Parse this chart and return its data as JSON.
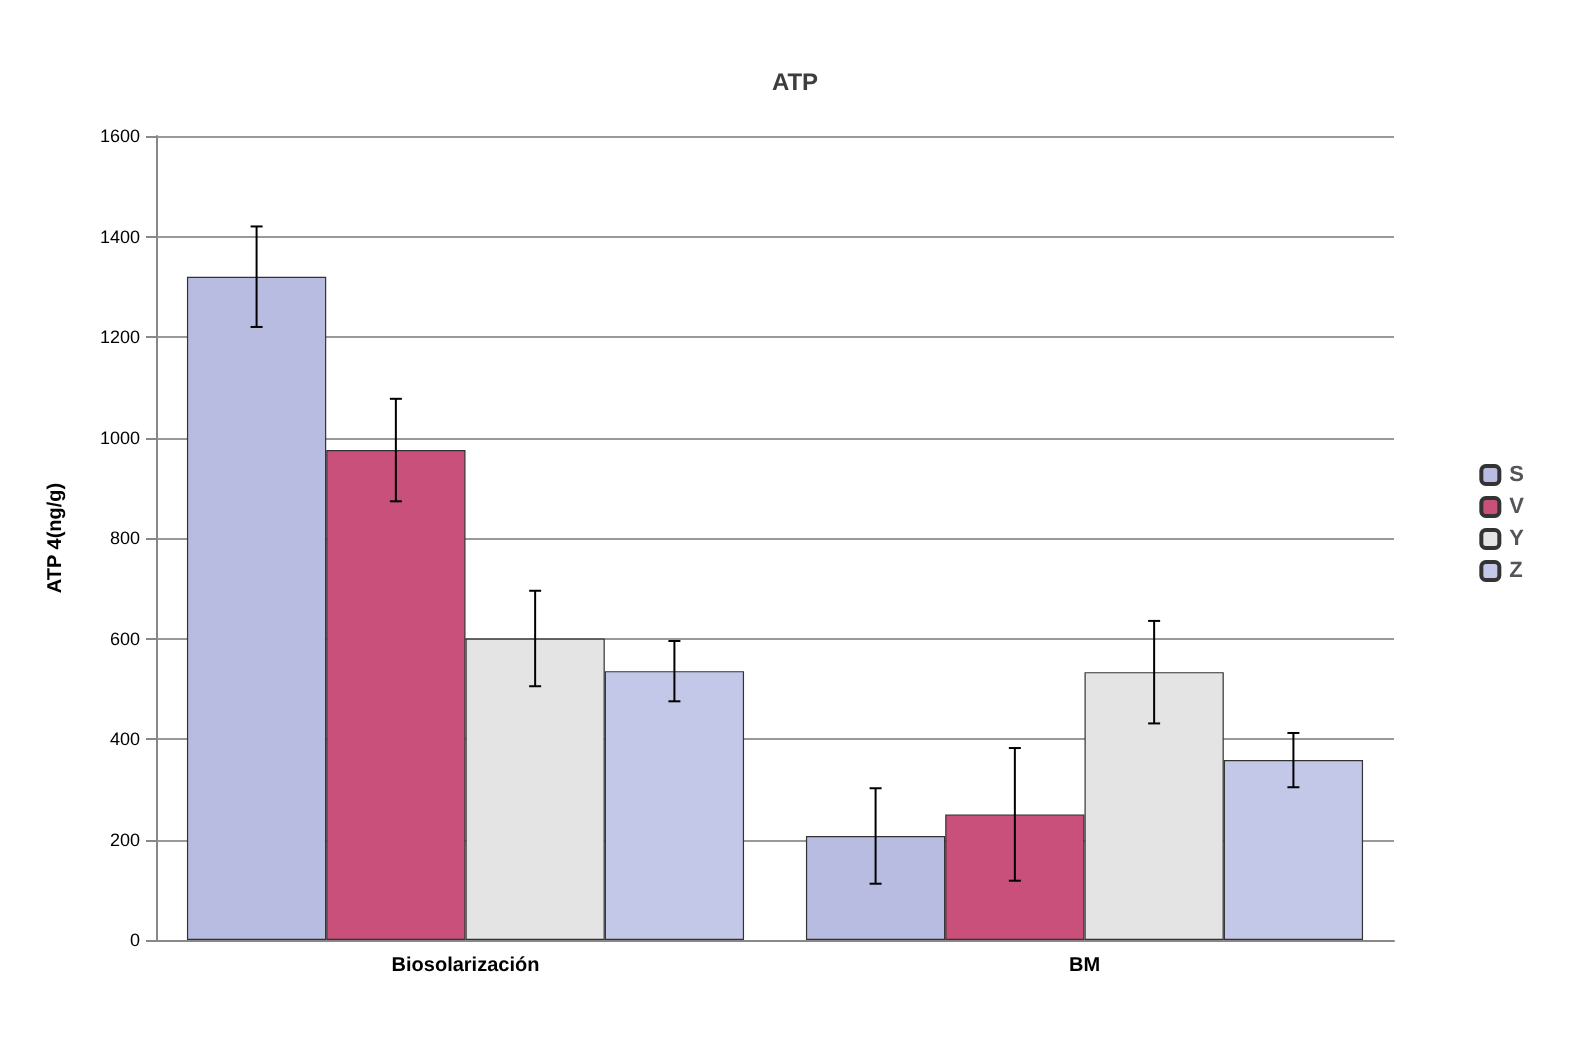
{
  "chart_data": {
    "type": "bar",
    "title": "ATP",
    "ylabel": "ATP 4(ng/g)",
    "categories": [
      "Biosolarización",
      "BM"
    ],
    "series": [
      {
        "name": "S",
        "color": "#b8bce0",
        "values": [
          1320,
          207
        ],
        "errors": [
          100,
          95
        ]
      },
      {
        "name": "V",
        "color": "#c8507a",
        "values": [
          975,
          250
        ],
        "errors": [
          102,
          132
        ]
      },
      {
        "name": "Y",
        "color": "#e4e4e4",
        "values": [
          600,
          533
        ],
        "errors": [
          95,
          102
        ]
      },
      {
        "name": "Z",
        "color": "#c4c8e8",
        "values": [
          535,
          358
        ],
        "errors": [
          60,
          54
        ]
      }
    ],
    "ylim": [
      0,
      1600
    ],
    "yticks": [
      0,
      200,
      400,
      600,
      800,
      1000,
      1200,
      1400,
      1600
    ],
    "grid": "y",
    "legend": "right"
  }
}
